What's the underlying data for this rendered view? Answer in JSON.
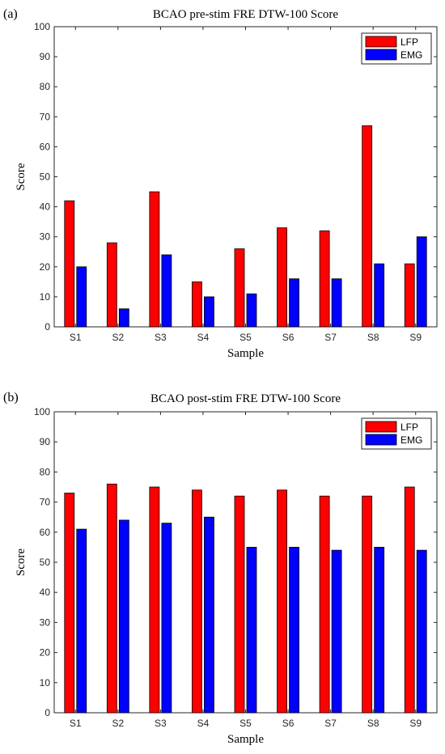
{
  "chart_data": [
    {
      "panel_label": "(a)",
      "type": "bar",
      "title": "BCAO pre-stim FRE DTW-100 Score",
      "xlabel": "Sample",
      "ylabel": "Score",
      "ylim": [
        0,
        100
      ],
      "yticks": [
        0,
        10,
        20,
        30,
        40,
        50,
        60,
        70,
        80,
        90,
        100
      ],
      "categories": [
        "S1",
        "S2",
        "S3",
        "S4",
        "S5",
        "S6",
        "S7",
        "S8",
        "S9"
      ],
      "series": [
        {
          "name": "LFP",
          "color": "#ff0000",
          "values": [
            42,
            28,
            45,
            15,
            26,
            33,
            32,
            67,
            21
          ]
        },
        {
          "name": "EMG",
          "color": "#0000ff",
          "values": [
            20,
            6,
            24,
            10,
            11,
            16,
            16,
            21,
            30
          ]
        }
      ],
      "legend": "top-right",
      "grid": false
    },
    {
      "panel_label": "(b)",
      "type": "bar",
      "title": "BCAO post-stim FRE DTW-100 Score",
      "xlabel": "Sample",
      "ylabel": "Score",
      "ylim": [
        0,
        100
      ],
      "yticks": [
        0,
        10,
        20,
        30,
        40,
        50,
        60,
        70,
        80,
        90,
        100
      ],
      "categories": [
        "S1",
        "S2",
        "S3",
        "S4",
        "S5",
        "S6",
        "S7",
        "S8",
        "S9"
      ],
      "series": [
        {
          "name": "LFP",
          "color": "#ff0000",
          "values": [
            73,
            76,
            75,
            74,
            72,
            74,
            72,
            72,
            75
          ]
        },
        {
          "name": "EMG",
          "color": "#0000ff",
          "values": [
            61,
            64,
            63,
            65,
            55,
            55,
            54,
            55,
            54
          ]
        }
      ],
      "legend": "top-right",
      "grid": false
    }
  ]
}
